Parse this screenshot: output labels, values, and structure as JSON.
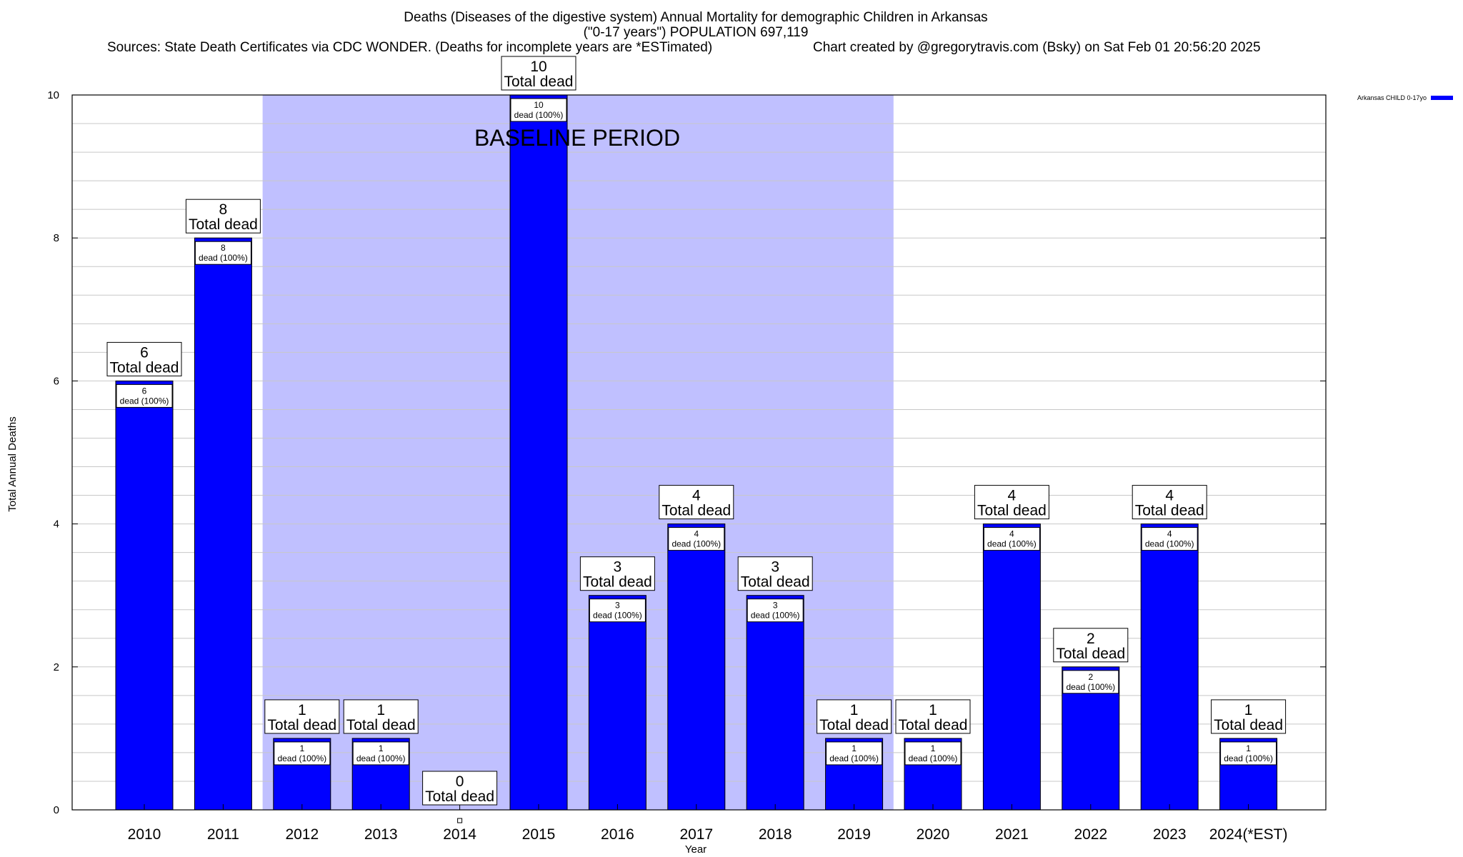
{
  "chart_data": {
    "type": "bar",
    "title_lines": [
      "Deaths (Diseases of the digestive system) Annual Mortality for demographic Children in Arkansas",
      "(\"0-17 years\") POPULATION 697,119"
    ],
    "sources": "Sources: State Death Certificates via CDC WONDER. (Deaths for incomplete years are *ESTimated)",
    "credit": "Chart created by @gregorytravis.com (Bsky) on Sat Feb 01 20:56:20 2025",
    "xlabel": "Year",
    "ylabel": "Total Annual Deaths",
    "ylim": [
      0,
      10
    ],
    "yticks": [
      0,
      2,
      4,
      6,
      8,
      10
    ],
    "grid": true,
    "categories": [
      "2010",
      "2011",
      "2012",
      "2013",
      "2014",
      "2015",
      "2016",
      "2017",
      "2018",
      "2019",
      "2020",
      "2021",
      "2022",
      "2023",
      "2024(*EST)"
    ],
    "series": [
      {
        "name": "Arkansas CHILD 0-17yo",
        "color": "#0000ff",
        "values": [
          6,
          8,
          1,
          1,
          0,
          10,
          3,
          4,
          3,
          1,
          1,
          4,
          2,
          4,
          1
        ]
      }
    ],
    "bar_labels": {
      "total_text": "Total dead",
      "inner_text": "dead (100%)"
    },
    "annotation": {
      "text": "BASELINE PERIOD",
      "from_category": "2012",
      "to_category": "2019",
      "color": "#c0c0ff"
    },
    "legend_placement": "top-right"
  }
}
